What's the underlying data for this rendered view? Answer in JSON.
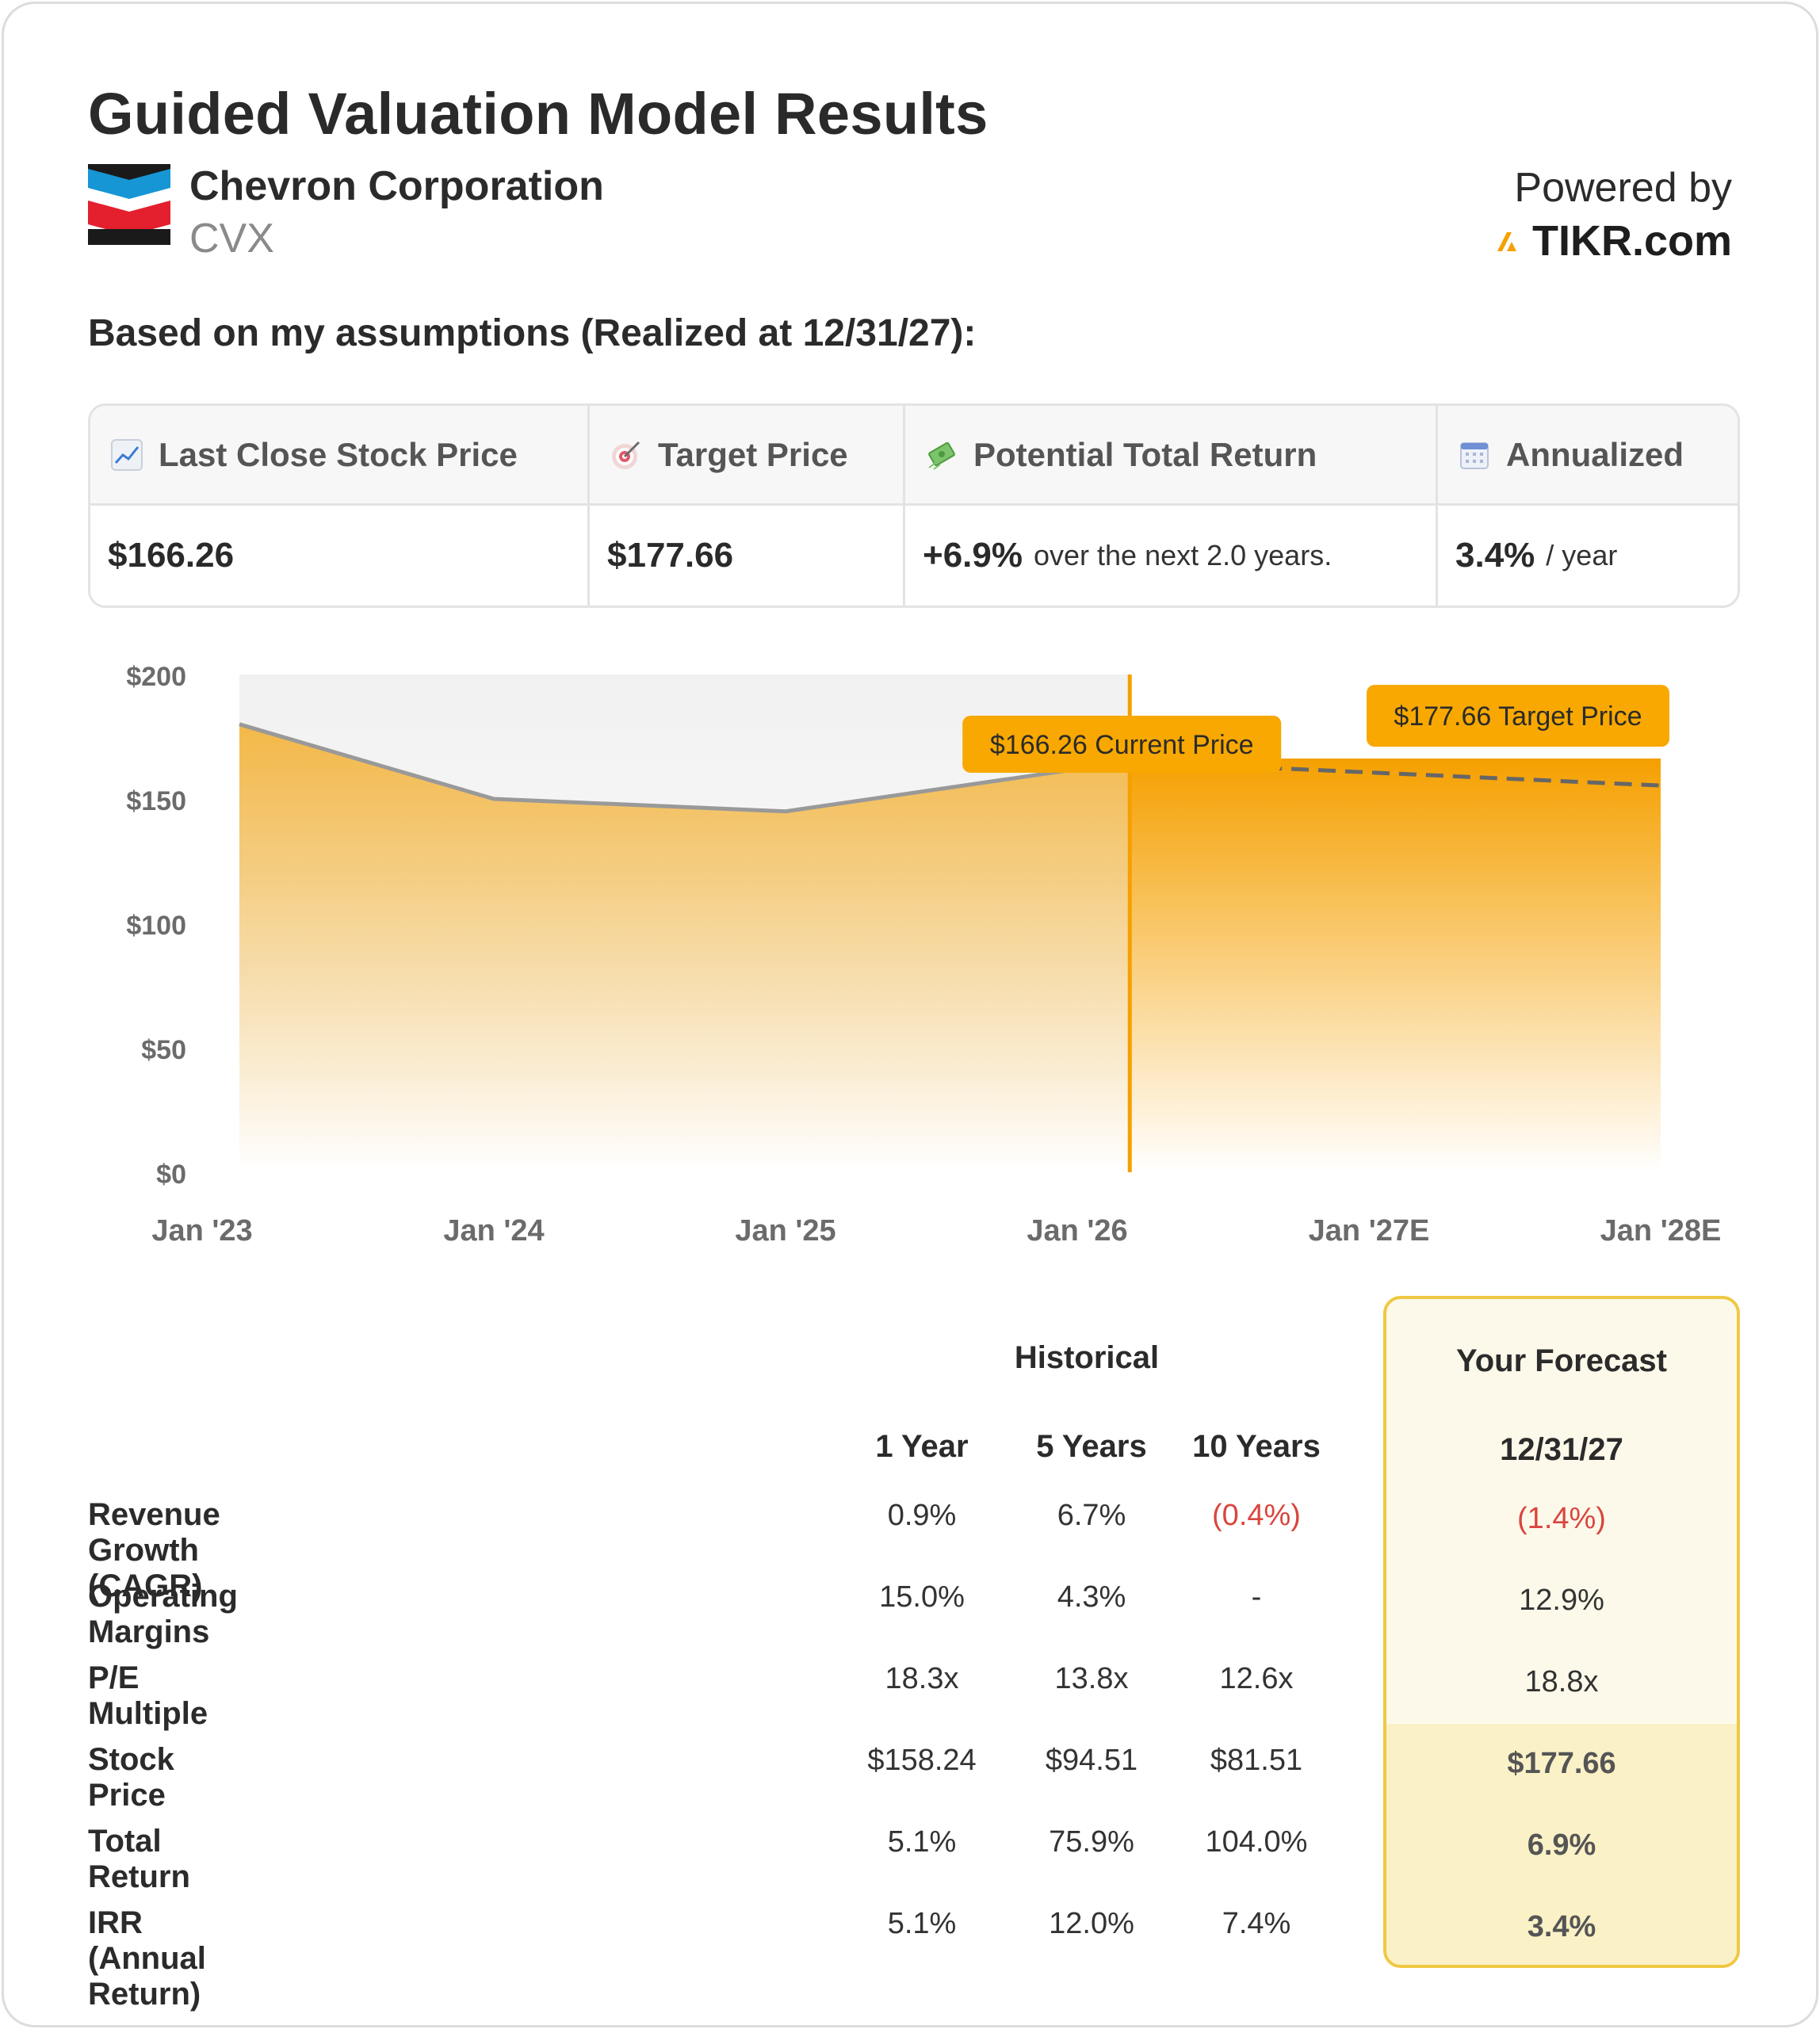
{
  "title": "Guided Valuation Model Results",
  "company": {
    "name": "Chevron Corporation",
    "ticker": "CVX",
    "logo_icon": "chevron-logo-icon"
  },
  "powered": {
    "label": "Powered by",
    "brand": "TIKR.com",
    "brand_icon": "tikr-logo-icon"
  },
  "assumptions_heading": "Based on my assumptions (Realized at 12/31/27):",
  "summary": {
    "last_close": {
      "label": "Last Close Stock Price",
      "icon": "chart-up-icon",
      "value": "$166.26"
    },
    "target": {
      "label": "Target Price",
      "icon": "target-icon",
      "value": "$177.66"
    },
    "total_return": {
      "label": "Potential Total Return",
      "icon": "money-icon",
      "value": "+6.9%",
      "suffix": "over the next 2.0 years."
    },
    "annualized": {
      "label": "Annualized",
      "icon": "calendar-icon",
      "value": "3.4%",
      "suffix": "/ year"
    }
  },
  "colors": {
    "accent": "#f5a000",
    "history_line": "#999999",
    "negative": "#d9463e",
    "forecast_border": "#efc843"
  },
  "chart_data": {
    "type": "area",
    "x": [
      "Jan '23",
      "Jan '24",
      "Jan '25",
      "Jan '26",
      "Jan '27E",
      "Jan '28E"
    ],
    "ylim": [
      0,
      200
    ],
    "yticks": [
      "$0",
      "$50",
      "$100",
      "$150",
      "$200"
    ],
    "history": [
      [
        0,
        180
      ],
      [
        1,
        150
      ],
      [
        2,
        145
      ],
      [
        3,
        162
      ],
      [
        3.18,
        166.26
      ]
    ],
    "forecast": [
      [
        3.18,
        166.26
      ],
      [
        5.13,
        177.66
      ]
    ],
    "annotations": [
      {
        "text": "$166.26 Current Price",
        "x": 3.18,
        "y": 166.26
      },
      {
        "text": "$177.66 Target Price",
        "x": 5.13,
        "y": 177.66
      }
    ]
  },
  "table": {
    "historical_label": "Historical",
    "forecast_label": "Your Forecast",
    "columns": [
      "1 Year",
      "5 Years",
      "10 Years"
    ],
    "forecast_column": "12/31/27",
    "rows": [
      {
        "label": "Revenue Growth (CAGR)",
        "values": [
          "0.9%",
          "6.7%",
          "(0.4%)"
        ],
        "forecast": "(1.4%)"
      },
      {
        "label": "Operating Margins",
        "values": [
          "15.0%",
          "4.3%",
          "-"
        ],
        "forecast": "12.9%"
      },
      {
        "label": "P/E Multiple",
        "values": [
          "18.3x",
          "13.8x",
          "12.6x"
        ],
        "forecast": "18.8x"
      },
      {
        "label": "Stock Price",
        "values": [
          "$158.24",
          "$94.51",
          "$81.51"
        ],
        "forecast": "$177.66"
      },
      {
        "label": "Total Return",
        "values": [
          "5.1%",
          "75.9%",
          "104.0%"
        ],
        "forecast": "6.9%"
      },
      {
        "label": "IRR (Annual Return)",
        "values": [
          "5.1%",
          "12.0%",
          "7.4%"
        ],
        "forecast": "3.4%"
      }
    ]
  }
}
